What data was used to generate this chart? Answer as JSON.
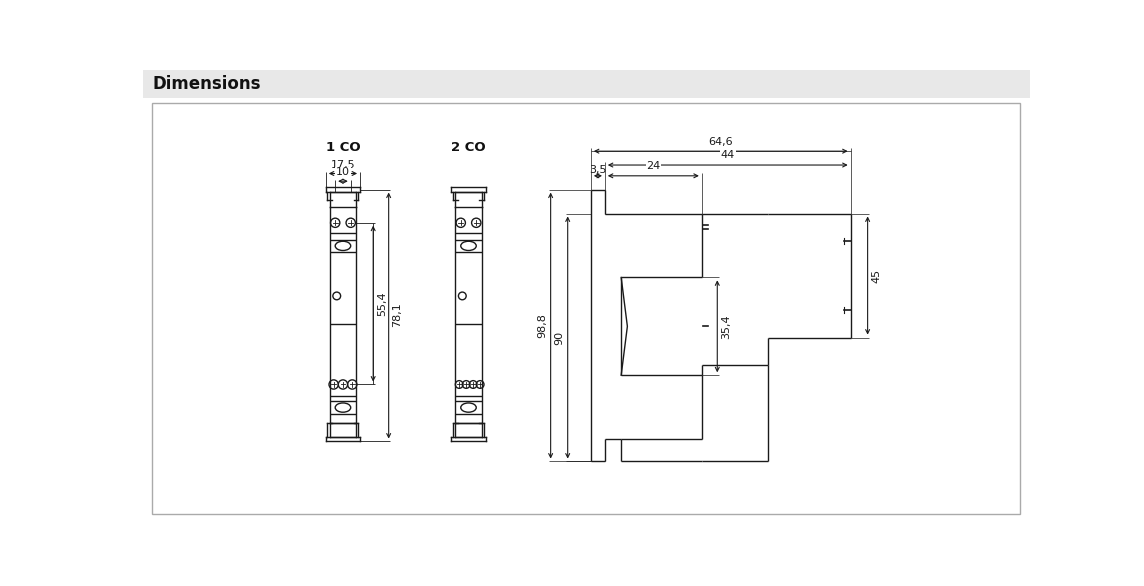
{
  "title": "Dimensions",
  "title_bg": "#e8e8e8",
  "bg_color": "#ffffff",
  "line_color": "#1a1a1a",
  "dim_color": "#1a1a1a",
  "label_1co": "1 CO",
  "label_2co": "2 CO",
  "dim_17_5": "17,5",
  "dim_10": "10",
  "dim_55_4": "55,4",
  "dim_78_1": "78,1",
  "dim_64_6": "64,6",
  "dim_44": "44",
  "dim_24": "24",
  "dim_3_5": "3,5",
  "dim_98_8": "98,8",
  "dim_90": "90",
  "dim_35_4": "35,4",
  "dim_45": "45",
  "fig_width": 11.44,
  "fig_height": 5.86,
  "dpi": 100
}
